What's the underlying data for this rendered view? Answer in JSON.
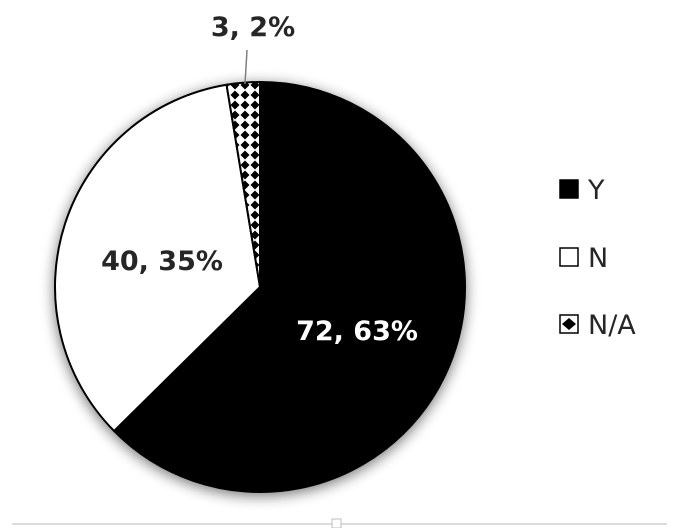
{
  "chart_data": {
    "type": "pie",
    "slices": [
      {
        "category": "Y",
        "value": 72,
        "percent": "63%",
        "label": "72, 63%",
        "fill": "#000000",
        "label_color": "#ffffff"
      },
      {
        "category": "N",
        "value": 40,
        "percent": "35%",
        "label": "40, 35%",
        "fill": "#ffffff",
        "label_color": "#262626"
      },
      {
        "category": "N/A",
        "value": 3,
        "percent": "2%",
        "label": "3, 2%",
        "fill": "diamond-pattern",
        "label_color": "#262626"
      }
    ],
    "legend": {
      "placement": "right",
      "entries": [
        "Y",
        "N",
        "N/A"
      ]
    },
    "start_angle": "12 o'clock",
    "direction": "clockwise"
  },
  "colors": {
    "outline": "#000000",
    "label_dark": "#262626",
    "label_light": "#ffffff",
    "background": "#ffffff"
  }
}
